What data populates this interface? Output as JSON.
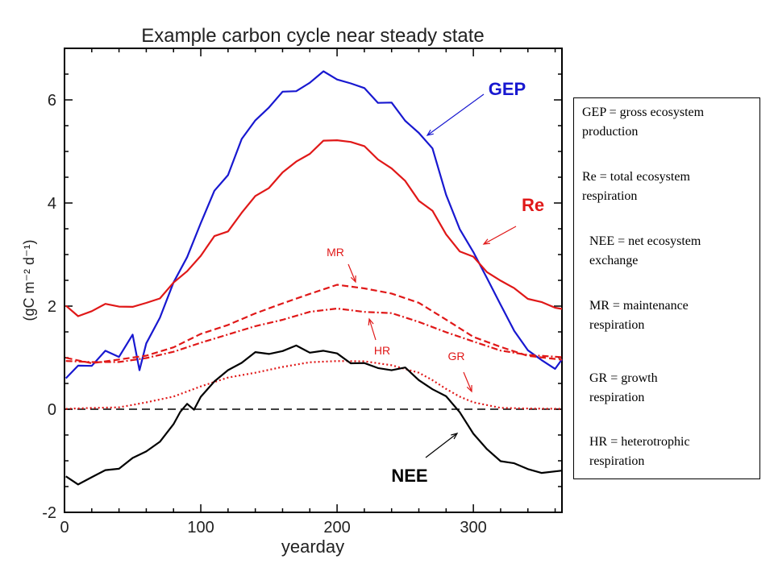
{
  "chart_data": {
    "type": "line",
    "title": "Example carbon cycle near steady state",
    "xlabel": "yearday",
    "ylabel": "(gC m⁻² d⁻¹)",
    "xlim": [
      0,
      365
    ],
    "ylim": [
      -2,
      7
    ],
    "xticks": [
      0,
      100,
      200,
      300
    ],
    "yticks": [
      -2,
      0,
      2,
      4,
      6
    ],
    "grid": false,
    "zero_line": {
      "y": 0,
      "style": "dashed"
    },
    "series": [
      {
        "name": "GEP",
        "color": "#1818d0",
        "style": "solid",
        "x": [
          1,
          10,
          20,
          30,
          40,
          50,
          55,
          60,
          70,
          80,
          90,
          100,
          110,
          120,
          130,
          140,
          150,
          160,
          170,
          180,
          190,
          200,
          210,
          220,
          230,
          240,
          250,
          260,
          270,
          280,
          290,
          300,
          310,
          320,
          330,
          340,
          350,
          360,
          365
        ],
        "y": [
          0.6,
          0.8,
          0.9,
          1.1,
          1.0,
          1.5,
          0.7,
          1.3,
          1.8,
          2.4,
          3.0,
          3.6,
          4.2,
          4.6,
          5.2,
          5.6,
          5.9,
          6.1,
          6.2,
          6.35,
          6.5,
          6.45,
          6.3,
          6.2,
          6.0,
          5.9,
          5.6,
          5.4,
          5.0,
          4.2,
          3.5,
          3.0,
          2.6,
          2.0,
          1.5,
          1.2,
          0.9,
          0.8,
          1.0
        ]
      },
      {
        "name": "Re",
        "color": "#e01818",
        "style": "solid",
        "x": [
          1,
          10,
          20,
          30,
          40,
          50,
          60,
          70,
          80,
          90,
          100,
          110,
          120,
          130,
          140,
          150,
          160,
          170,
          180,
          190,
          200,
          210,
          220,
          230,
          240,
          250,
          260,
          270,
          280,
          290,
          300,
          310,
          320,
          330,
          340,
          350,
          360,
          365
        ],
        "y": [
          1.95,
          1.85,
          1.9,
          2.0,
          2.05,
          1.95,
          2.05,
          2.2,
          2.4,
          2.7,
          3.0,
          3.3,
          3.5,
          3.8,
          4.1,
          4.35,
          4.55,
          4.8,
          5.0,
          5.15,
          5.25,
          5.2,
          5.05,
          4.9,
          4.65,
          4.4,
          4.1,
          3.8,
          3.4,
          3.1,
          2.9,
          2.7,
          2.5,
          2.3,
          2.2,
          2.05,
          1.95,
          2.0
        ]
      },
      {
        "name": "MR",
        "color": "#e01818",
        "style": "dashed",
        "x": [
          1,
          20,
          40,
          60,
          80,
          100,
          120,
          140,
          160,
          180,
          200,
          220,
          240,
          260,
          280,
          300,
          320,
          340,
          365
        ],
        "y": [
          1.0,
          0.9,
          0.95,
          1.05,
          1.2,
          1.45,
          1.65,
          1.85,
          2.05,
          2.25,
          2.4,
          2.35,
          2.25,
          2.05,
          1.75,
          1.4,
          1.2,
          1.05,
          0.95
        ]
      },
      {
        "name": "HR",
        "color": "#e01818",
        "style": "dashdot",
        "x": [
          1,
          20,
          40,
          60,
          80,
          100,
          120,
          140,
          160,
          180,
          200,
          220,
          240,
          260,
          280,
          300,
          320,
          340,
          365
        ],
        "y": [
          0.95,
          0.9,
          0.92,
          1.0,
          1.1,
          1.3,
          1.45,
          1.6,
          1.75,
          1.88,
          1.95,
          1.9,
          1.85,
          1.7,
          1.5,
          1.3,
          1.15,
          1.05,
          1.0
        ]
      },
      {
        "name": "GR",
        "color": "#e01818",
        "style": "dotted",
        "x": [
          1,
          20,
          40,
          60,
          80,
          100,
          120,
          140,
          160,
          180,
          200,
          220,
          240,
          260,
          270,
          280,
          290,
          300,
          320,
          340,
          365
        ],
        "y": [
          0.0,
          0.02,
          0.05,
          0.12,
          0.25,
          0.45,
          0.6,
          0.72,
          0.82,
          0.9,
          0.95,
          0.92,
          0.85,
          0.72,
          0.55,
          0.4,
          0.25,
          0.12,
          0.04,
          0.01,
          0.0
        ]
      },
      {
        "name": "NEE",
        "color": "#000000",
        "style": "solid",
        "x": [
          1,
          10,
          20,
          30,
          40,
          50,
          60,
          70,
          80,
          85,
          90,
          95,
          100,
          110,
          120,
          130,
          140,
          150,
          160,
          170,
          180,
          190,
          200,
          210,
          220,
          230,
          240,
          250,
          260,
          270,
          280,
          290,
          300,
          310,
          320,
          330,
          340,
          350,
          365
        ],
        "y": [
          -1.35,
          -1.4,
          -1.35,
          -1.2,
          -1.1,
          -1.0,
          -0.8,
          -0.6,
          -0.35,
          0.0,
          0.1,
          -0.05,
          0.3,
          0.5,
          0.75,
          0.95,
          1.05,
          1.1,
          1.15,
          1.18,
          1.15,
          1.12,
          1.05,
          0.95,
          0.85,
          0.8,
          0.8,
          0.75,
          0.6,
          0.4,
          0.2,
          0.0,
          -0.5,
          -0.8,
          -0.95,
          -1.1,
          -1.15,
          -1.2,
          -1.25
        ]
      }
    ],
    "annotations": [
      {
        "text": "GEP",
        "color": "#1818d0",
        "weight": "bold",
        "size": "large"
      },
      {
        "text": "Re",
        "color": "#e01818",
        "weight": "bold",
        "size": "large"
      },
      {
        "text": "NEE",
        "color": "#000000",
        "weight": "bold",
        "size": "large"
      },
      {
        "text": "MR",
        "color": "#e01818",
        "weight": "normal",
        "size": "small"
      },
      {
        "text": "HR",
        "color": "#e01818",
        "weight": "normal",
        "size": "small"
      },
      {
        "text": "GR",
        "color": "#e01818",
        "weight": "normal",
        "size": "small"
      }
    ]
  },
  "legend": {
    "entries": [
      {
        "line1": "GEP = gross ecosystem",
        "line2": "production"
      },
      {
        "line1": "Re = total ecosystem",
        "line2": "respiration"
      },
      {
        "line1": "NEE = net ecosystem",
        "line2": "exchange"
      },
      {
        "line1": "MR = maintenance",
        "line2": "respiration"
      },
      {
        "line1": "GR = growth",
        "line2": "respiration"
      },
      {
        "line1": "HR = heterotrophic",
        "line2": "respiration"
      }
    ]
  }
}
